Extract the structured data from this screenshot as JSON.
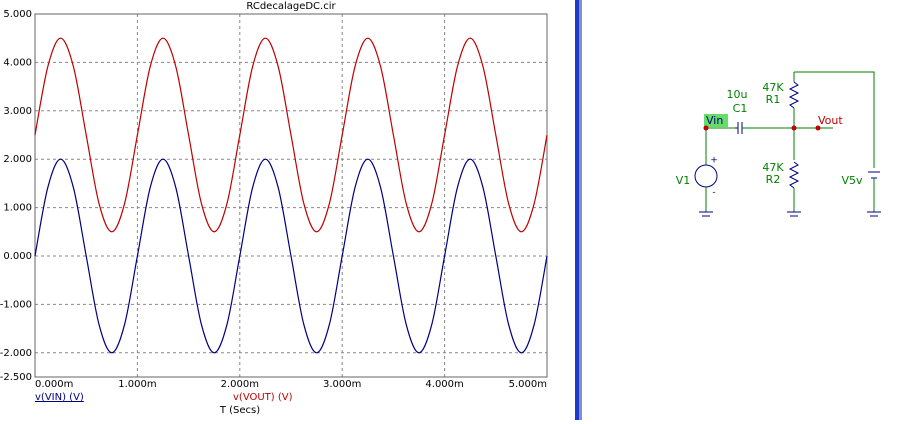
{
  "chart_data": {
    "type": "line",
    "title": "RCdecalageDC.cir",
    "x_label": "T (Secs)",
    "x": [
      0,
      0.000125,
      0.00025,
      0.000375,
      0.0005,
      0.000625,
      0.00075,
      0.000875,
      0.001,
      0.001125,
      0.00125,
      0.001375,
      0.0015,
      0.001625,
      0.00175,
      0.001875,
      0.002,
      0.002125,
      0.00225,
      0.002375,
      0.0025,
      0.002625,
      0.00275,
      0.002875,
      0.003,
      0.003125,
      0.00325,
      0.003375,
      0.0035,
      0.003625,
      0.00375,
      0.003875,
      0.004,
      0.004125,
      0.00425,
      0.004375,
      0.0045,
      0.004625,
      0.00475,
      0.004875,
      0.005
    ],
    "series": [
      {
        "name": "v(VIN) (V)",
        "color": "#000080",
        "values": [
          0,
          1.414,
          2,
          1.414,
          0,
          -1.414,
          -2,
          -1.414,
          0,
          1.414,
          2,
          1.414,
          0,
          -1.414,
          -2,
          -1.414,
          0,
          1.414,
          2,
          1.414,
          0,
          -1.414,
          -2,
          -1.414,
          0,
          1.414,
          2,
          1.414,
          0,
          -1.414,
          -2,
          -1.414,
          0,
          1.414,
          2,
          1.414,
          0,
          -1.414,
          -2,
          -1.414,
          0
        ]
      },
      {
        "name": "v(VOUT) (V)",
        "color": "#c00000",
        "values": [
          2.5,
          3.914,
          4.5,
          3.914,
          2.5,
          1.086,
          0.5,
          1.086,
          2.5,
          3.914,
          4.5,
          3.914,
          2.5,
          1.086,
          0.5,
          1.086,
          2.5,
          3.914,
          4.5,
          3.914,
          2.5,
          1.086,
          0.5,
          1.086,
          2.5,
          3.914,
          4.5,
          3.914,
          2.5,
          1.086,
          0.5,
          1.086,
          2.5,
          3.914,
          4.5,
          3.914,
          2.5,
          1.086,
          0.5,
          1.086,
          2.5
        ]
      }
    ],
    "xlim": [
      0,
      0.005
    ],
    "xticks": [
      {
        "value": 0,
        "label": "0.000m"
      },
      {
        "value": 0.001,
        "label": "1.000m"
      },
      {
        "value": 0.002,
        "label": "2.000m"
      },
      {
        "value": 0.003,
        "label": "3.000m"
      },
      {
        "value": 0.004,
        "label": "4.000m"
      },
      {
        "value": 0.005,
        "label": "5.000m"
      }
    ],
    "ylim": [
      -2.5,
      5
    ],
    "yticks": [
      {
        "value": 5,
        "label": "5.000"
      },
      {
        "value": 4,
        "label": "4.000"
      },
      {
        "value": 3,
        "label": "3.000"
      },
      {
        "value": 2,
        "label": "2.000"
      },
      {
        "value": 1,
        "label": "1.000"
      },
      {
        "value": 0,
        "label": "0.000"
      },
      {
        "value": -1,
        "label": "-1.000"
      },
      {
        "value": -2,
        "label": "-2.000"
      },
      {
        "value": -2.5,
        "label": "-2.500"
      }
    ],
    "grid": true
  },
  "schematic": {
    "r1": {
      "value": "47K",
      "name": "R1"
    },
    "r2": {
      "value": "47K",
      "name": "R2"
    },
    "c1": {
      "value": "10u",
      "name": "C1"
    },
    "v1": {
      "name": "V1",
      "plus": "+",
      "minus": "-"
    },
    "v5": {
      "name": "V5v"
    },
    "nodes": [
      "Vin",
      "Vout"
    ]
  }
}
